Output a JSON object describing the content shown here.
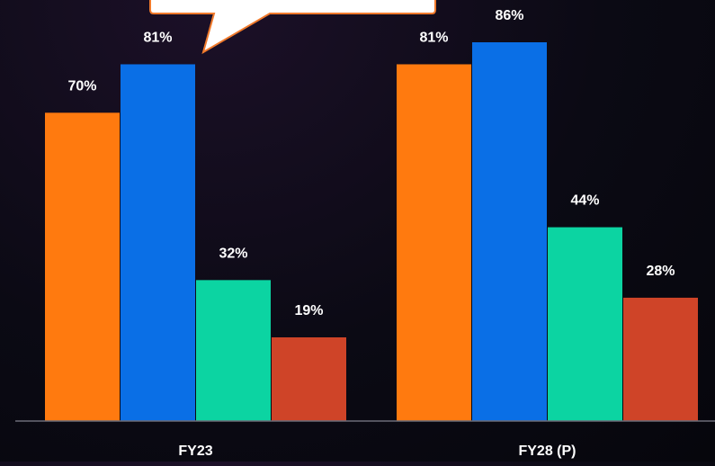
{
  "chart_data": {
    "type": "bar",
    "categories": [
      "FY23",
      "FY28 (P)"
    ],
    "series": [
      {
        "values": [
          70,
          81
        ],
        "color": "#ff7a0f"
      },
      {
        "values": [
          81,
          86
        ],
        "color": "#0a6fe6"
      },
      {
        "values": [
          32,
          44
        ],
        "color": "#0cd4a2"
      },
      {
        "values": [
          19,
          28
        ],
        "color": "#cf4428"
      }
    ],
    "value_suffix": "%",
    "ylim": [
      0,
      100
    ],
    "title": "",
    "xlabel": "",
    "ylabel": "",
    "grid": false,
    "legend": "none",
    "callout_text": ""
  },
  "colors": {
    "axis": "#6c6c78",
    "label_text": "#ffffff",
    "callout_fill": "#ffffff",
    "callout_border": "#f07a2c"
  }
}
